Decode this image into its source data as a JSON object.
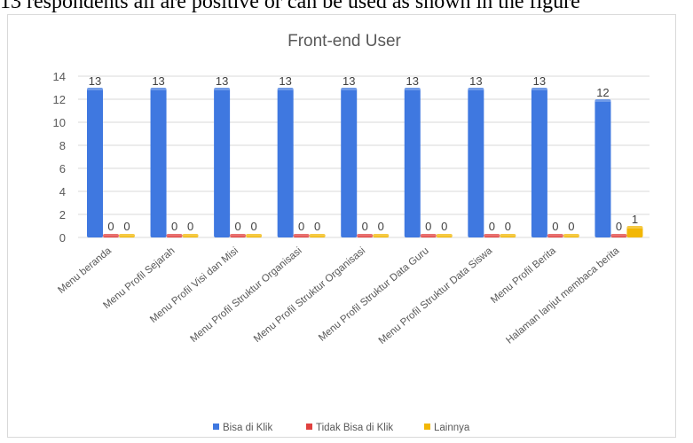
{
  "page": {
    "caption": "13 respondents all are positive or can be used as shown in the figure"
  },
  "chart_data": {
    "type": "bar",
    "title": "Front-end User",
    "xlabel": "",
    "ylabel": "",
    "ylim": [
      0,
      14
    ],
    "yticks": [
      0,
      2,
      4,
      6,
      8,
      10,
      12,
      14
    ],
    "grid": true,
    "legend_position": "bottom",
    "categories": [
      "Menu beranda",
      "Menu Profil Sejarah",
      "Menu Profil Visi dan Misi",
      "Menu Profil Struktur Organisasi",
      "Menu Profil Struktur Organisasi",
      "Menu Profil Struktur Data Guru",
      "Menu Profil Struktur Data Siswa",
      "Menu Profil Berita",
      "Halaman lanjut membaca berita"
    ],
    "series": [
      {
        "name": "Bisa di Klik",
        "color": "#3f78e0",
        "values": [
          13,
          13,
          13,
          13,
          13,
          13,
          13,
          13,
          12
        ]
      },
      {
        "name": "Tidak Bisa di Klik",
        "color": "#e0413f",
        "values": [
          0,
          0,
          0,
          0,
          0,
          0,
          0,
          0,
          0
        ]
      },
      {
        "name": "Lainnya",
        "color": "#f2b705",
        "values": [
          0,
          0,
          0,
          0,
          0,
          0,
          0,
          0,
          1
        ]
      }
    ]
  }
}
